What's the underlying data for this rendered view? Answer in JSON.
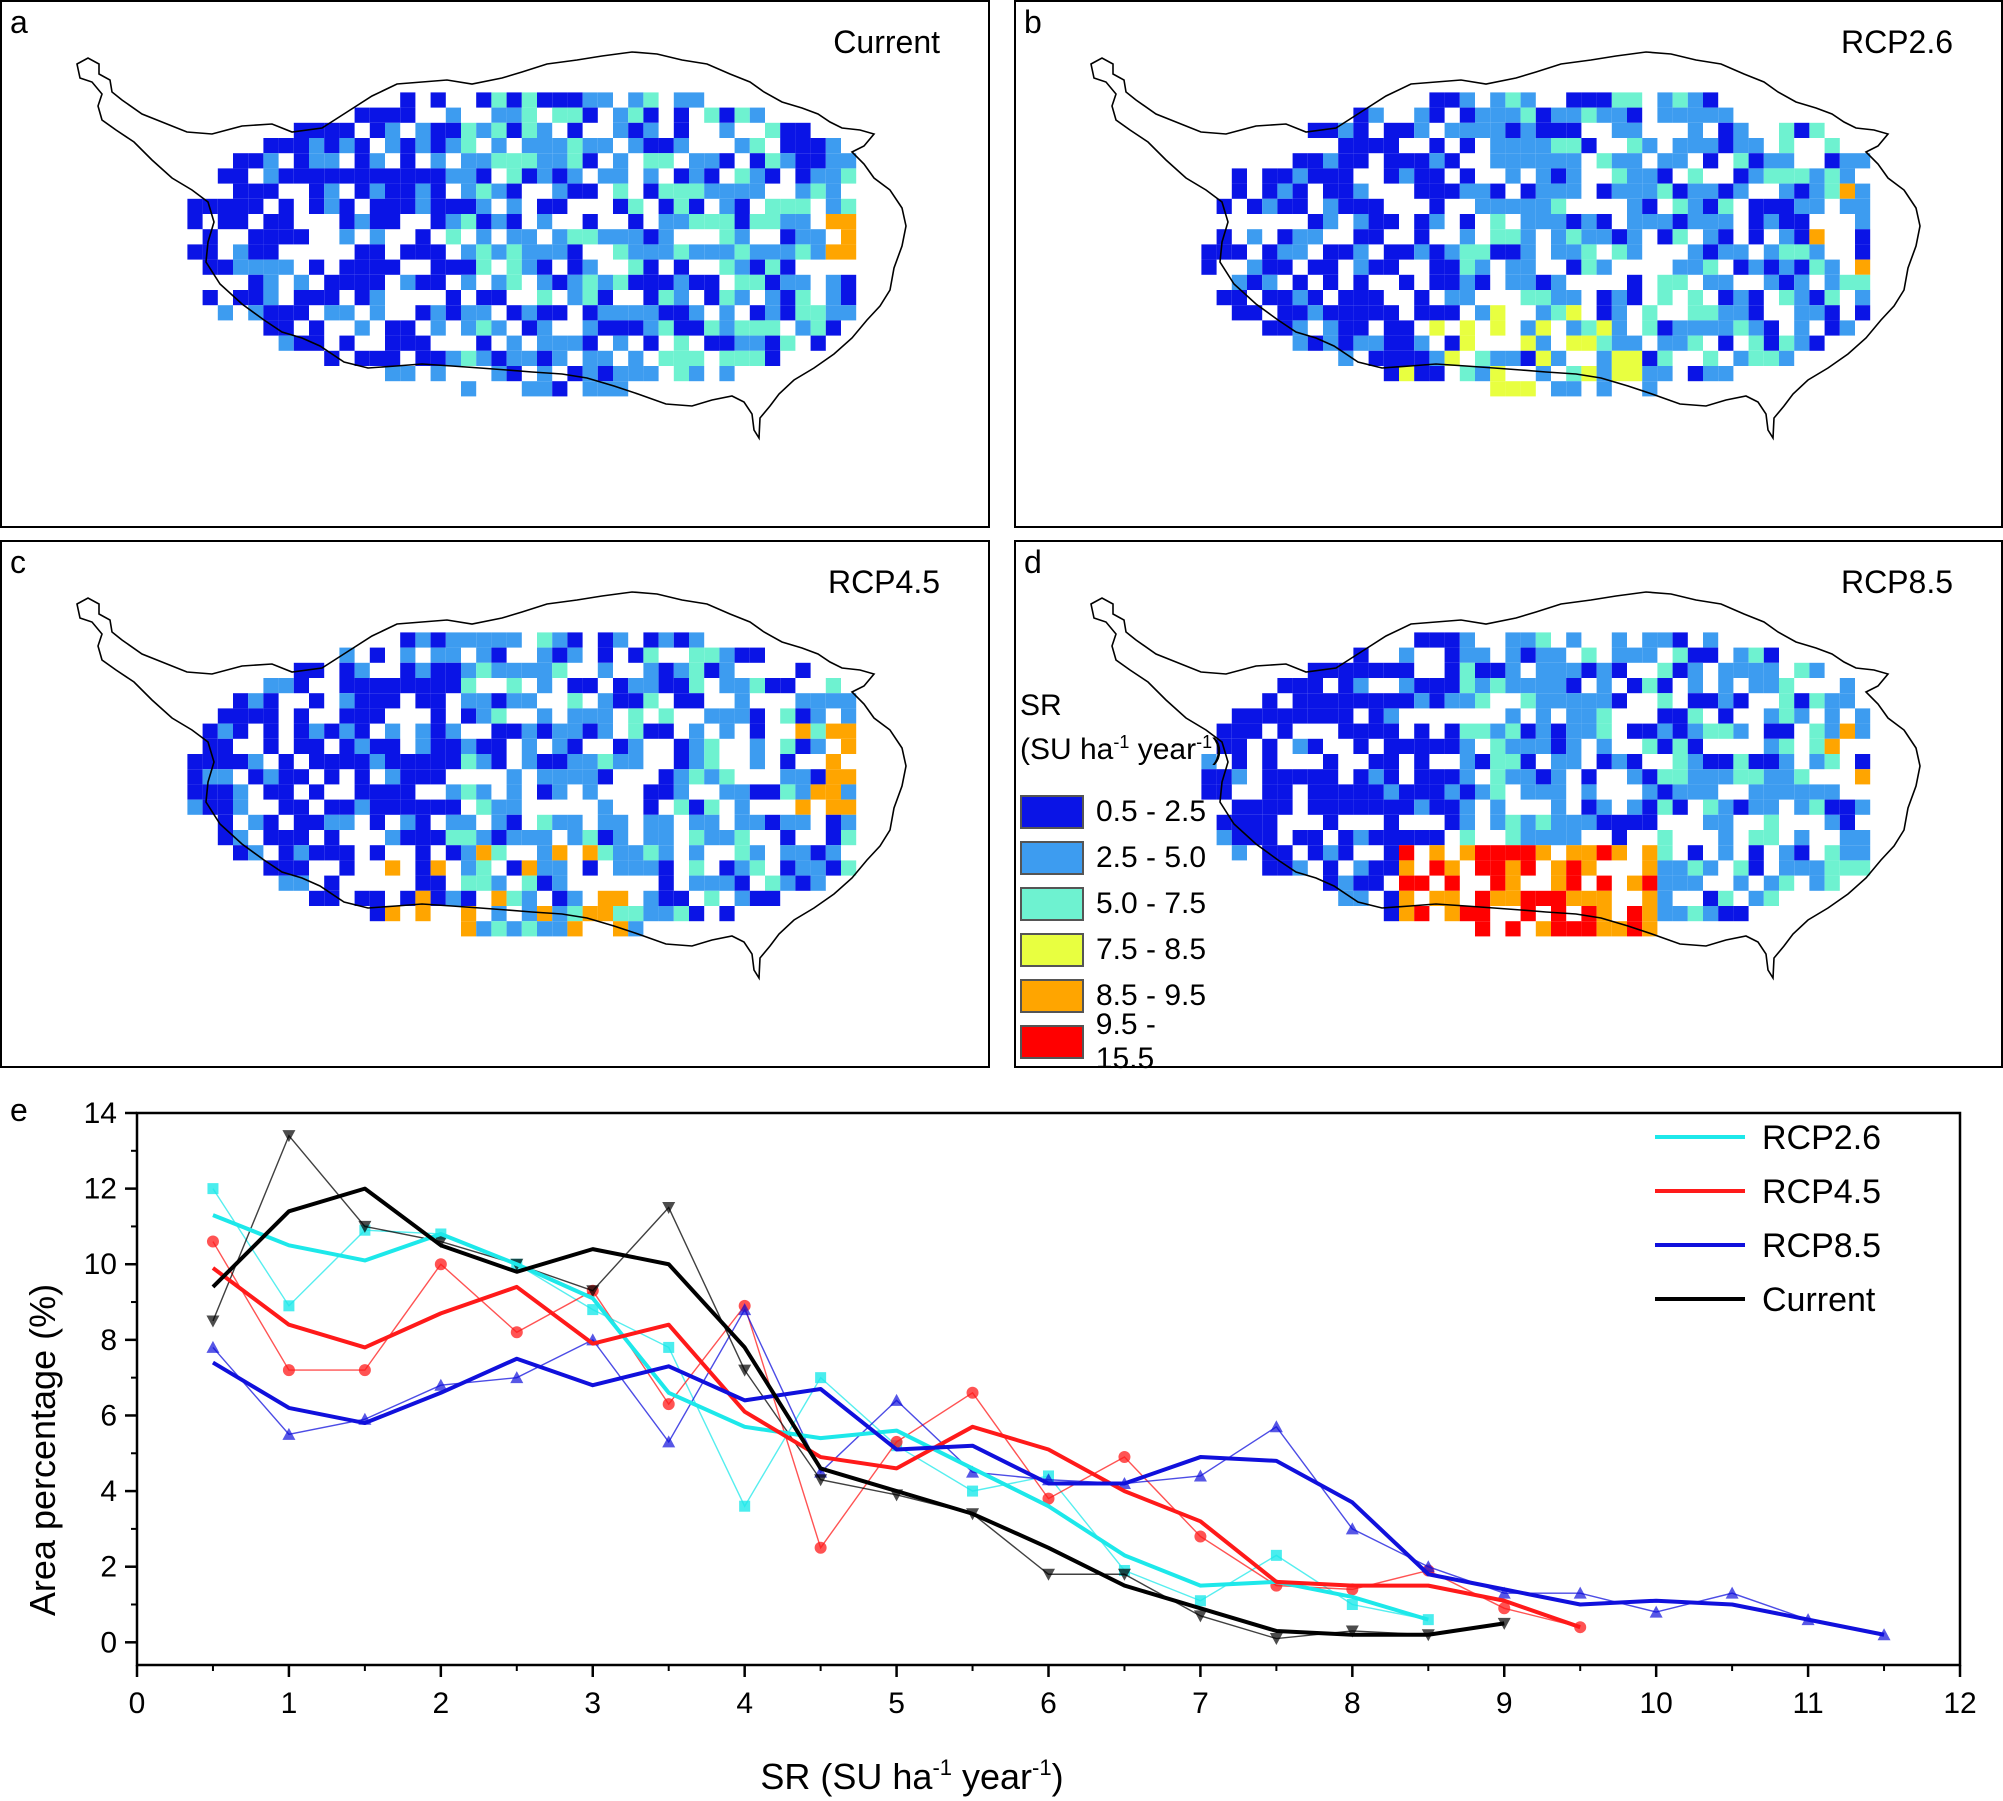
{
  "panels": [
    {
      "letter": "a",
      "title": "Current"
    },
    {
      "letter": "b",
      "title": "RCP2.6"
    },
    {
      "letter": "c",
      "title": "RCP4.5"
    },
    {
      "letter": "d",
      "title": "RCP8.5"
    }
  ],
  "legend": {
    "title_line1": "SR",
    "title_line2_pre": "(SU ha",
    "title_line2_sup1": "-1",
    "title_line2_mid": " year",
    "title_line2_sup2": "-1",
    "title_line2_post": ")",
    "items": [
      {
        "label": "0.5 - 2.5",
        "color": "#0a14e6"
      },
      {
        "label": "2.5 - 5.0",
        "color": "#3d9cf0"
      },
      {
        "label": "5.0 - 7.5",
        "color": "#6ef2d0"
      },
      {
        "label": "7.5 - 8.5",
        "color": "#e8ff40"
      },
      {
        "label": "8.5 - 9.5",
        "color": "#ffa500"
      },
      {
        "label": "9.5 - 15.5",
        "color": "#ff0000"
      }
    ]
  },
  "chart_data": {
    "type": "line",
    "panel_letter": "e",
    "xlabel_pre": "SR (SU ha",
    "xlabel_sup1": "-1",
    "xlabel_mid": " year",
    "xlabel_sup2": "-1",
    "xlabel_post": ")",
    "ylabel": "Area percentage (%)",
    "xlim": [
      0,
      12
    ],
    "ylim": [
      -0.6,
      14
    ],
    "xticks": [
      0,
      1,
      2,
      3,
      4,
      5,
      6,
      7,
      8,
      9,
      10,
      11,
      12
    ],
    "yticks": [
      0,
      2,
      4,
      6,
      8,
      10,
      12,
      14
    ],
    "legend_position": "top-right",
    "series": [
      {
        "name": "RCP2.6",
        "color": "#1de8ea",
        "marker": "square",
        "x": [
          0.5,
          1,
          1.5,
          2,
          2.5,
          3,
          3.5,
          4,
          4.5,
          5,
          5.5,
          6,
          6.5,
          7,
          7.5,
          8,
          8.5
        ],
        "raw": [
          12.0,
          8.9,
          10.9,
          10.8,
          10.0,
          8.8,
          7.8,
          3.6,
          7.0,
          5.2,
          4.0,
          4.4,
          1.9,
          1.1,
          2.3,
          1.0,
          0.6
        ],
        "smooth": [
          11.3,
          10.5,
          10.1,
          10.8,
          10.0,
          9.1,
          6.6,
          5.7,
          5.4,
          5.6,
          4.6,
          3.6,
          2.3,
          1.5,
          1.6,
          1.2,
          0.6
        ]
      },
      {
        "name": "RCP4.5",
        "color": "#ff1a1a",
        "marker": "circle",
        "x": [
          0.5,
          1,
          1.5,
          2,
          2.5,
          3,
          3.5,
          4,
          4.5,
          5,
          5.5,
          6,
          6.5,
          7,
          7.5,
          8,
          8.5,
          9,
          9.5
        ],
        "raw": [
          10.6,
          7.2,
          7.2,
          10.0,
          8.2,
          9.3,
          6.3,
          8.9,
          2.5,
          5.3,
          6.6,
          3.8,
          4.9,
          2.8,
          1.5,
          1.4,
          1.9,
          0.9,
          0.4
        ],
        "smooth": [
          9.9,
          8.4,
          7.8,
          8.7,
          9.4,
          7.9,
          8.4,
          6.1,
          4.9,
          4.6,
          5.7,
          5.1,
          4.0,
          3.2,
          1.6,
          1.5,
          1.5,
          1.1,
          0.4
        ]
      },
      {
        "name": "RCP8.5",
        "color": "#1010dc",
        "marker": "triangle",
        "x": [
          0.5,
          1,
          1.5,
          2,
          2.5,
          3,
          3.5,
          4,
          4.5,
          5,
          5.5,
          6,
          6.5,
          7,
          7.5,
          8,
          8.5,
          9,
          9.5,
          10,
          10.5,
          11,
          11.5
        ],
        "raw": [
          7.8,
          5.5,
          5.9,
          6.8,
          7.0,
          8.0,
          5.3,
          8.8,
          4.5,
          6.4,
          4.5,
          4.3,
          4.2,
          4.4,
          5.7,
          3.0,
          2.0,
          1.3,
          1.3,
          0.8,
          1.3,
          0.6,
          0.2
        ],
        "smooth": [
          7.4,
          6.2,
          5.8,
          6.6,
          7.5,
          6.8,
          7.3,
          6.4,
          6.7,
          5.1,
          5.2,
          4.2,
          4.2,
          4.9,
          4.8,
          3.7,
          1.8,
          1.4,
          1.0,
          1.1,
          1.0,
          0.6,
          0.2
        ]
      },
      {
        "name": "Current",
        "color": "#000000",
        "marker": "triangle-down",
        "x": [
          0.5,
          1,
          1.5,
          2,
          2.5,
          3,
          3.5,
          4,
          4.5,
          5,
          5.5,
          6,
          6.5,
          7,
          7.5,
          8,
          8.5,
          9
        ],
        "raw": [
          8.5,
          13.4,
          11.0,
          10.6,
          10.0,
          9.3,
          11.5,
          7.2,
          4.3,
          3.9,
          3.4,
          1.8,
          1.8,
          0.7,
          0.1,
          0.3,
          0.2,
          0.5
        ],
        "smooth": [
          9.4,
          11.4,
          12.0,
          10.5,
          9.8,
          10.4,
          10.0,
          7.8,
          4.6,
          4.0,
          3.4,
          2.5,
          1.5,
          0.9,
          0.3,
          0.2,
          0.2,
          0.5
        ]
      }
    ]
  }
}
